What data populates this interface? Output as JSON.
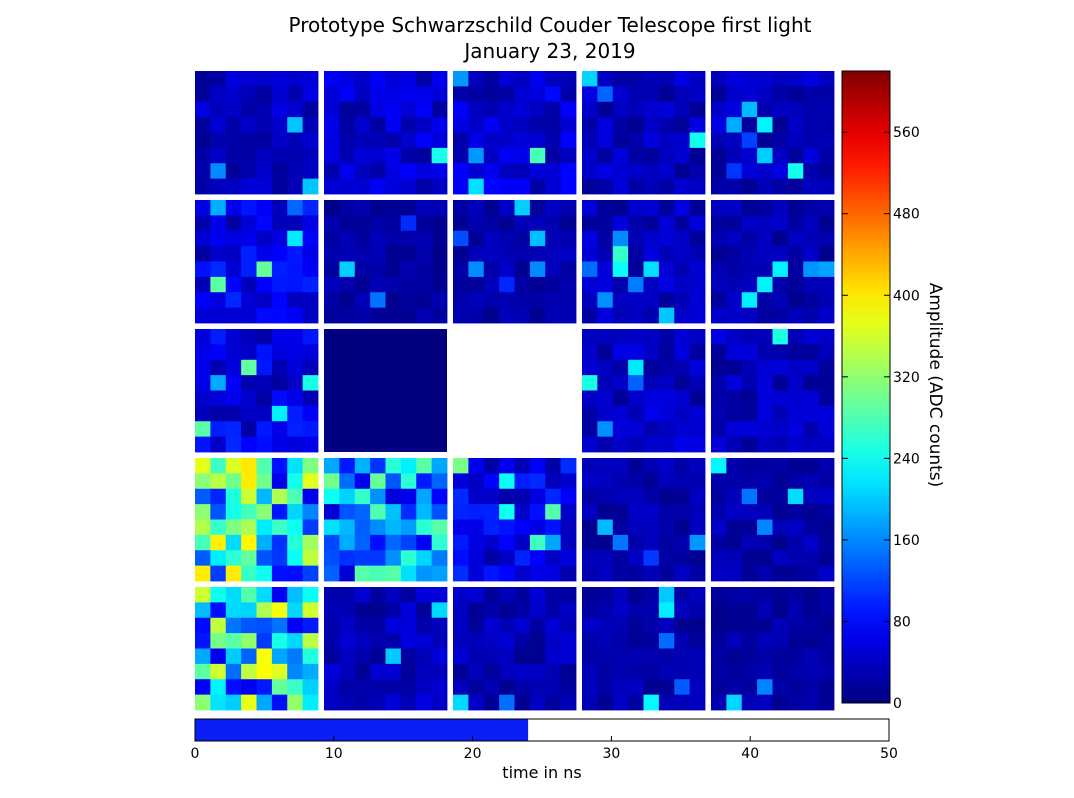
{
  "chart_data": {
    "type": "heatmap",
    "title": "Prototype Schwarzschild Couder Telescope first light",
    "subtitle": "January 23, 2019",
    "module_grid": [
      5,
      5
    ],
    "pixels_per_module": [
      8,
      8
    ],
    "empty_modules": [
      [
        2,
        2
      ]
    ],
    "uniform_modules": [
      {
        "row": 2,
        "col": 1,
        "value": 0
      }
    ],
    "colormap": "jet",
    "colorbar": {
      "label": "Amplitude (ADC counts)",
      "range": [
        0,
        620
      ],
      "ticks": [
        0,
        80,
        160,
        240,
        320,
        400,
        480,
        560
      ]
    },
    "module_levels": [
      [
        40,
        50,
        55,
        40,
        40
      ],
      [
        70,
        25,
        30,
        40,
        30
      ],
      [
        70,
        0,
        null,
        45,
        40
      ],
      [
        260,
        200,
        70,
        30,
        30
      ],
      [
        250,
        40,
        35,
        30,
        25
      ]
    ],
    "time_axis": {
      "label": "time in ns",
      "range": [
        0,
        50
      ],
      "ticks": [
        0,
        10,
        20,
        30,
        40,
        50
      ],
      "value": 24,
      "bar_color": "#0a1ef5"
    }
  }
}
